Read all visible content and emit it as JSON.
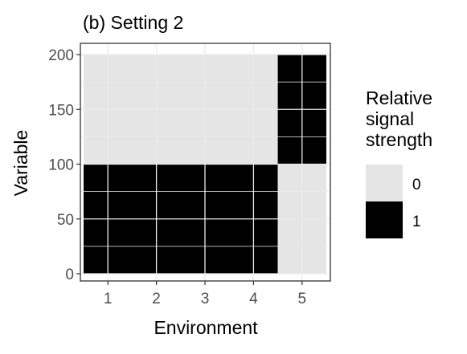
{
  "chart_data": {
    "type": "heatmap",
    "title": "(b) Setting 2",
    "xlabel": "Environment",
    "ylabel": "Variable",
    "x_categories": [
      "1",
      "2",
      "3",
      "4",
      "5"
    ],
    "xlim": [
      0.5,
      5.5
    ],
    "ylim": [
      0,
      200
    ],
    "yticks": [
      0,
      50,
      100,
      150,
      200
    ],
    "grid": true,
    "legend": {
      "title_lines": [
        "Relative",
        "signal",
        "strength"
      ],
      "placement": "right",
      "entries": [
        {
          "label": "0",
          "value": 0,
          "color": "#e5e5e5"
        },
        {
          "label": "1",
          "value": 1,
          "color": "#000000"
        }
      ]
    },
    "cells": [
      {
        "x_from": 1,
        "x_to": 4,
        "y_from": 0,
        "y_to": 100,
        "value": 1
      },
      {
        "x_from": 1,
        "x_to": 4,
        "y_from": 100,
        "y_to": 200,
        "value": 0
      },
      {
        "x_from": 5,
        "x_to": 5,
        "y_from": 0,
        "y_to": 100,
        "value": 0
      },
      {
        "x_from": 5,
        "x_to": 5,
        "y_from": 100,
        "y_to": 200,
        "value": 1
      }
    ],
    "colors": {
      "0": "#e5e5e5",
      "1": "#000000",
      "grid": "#ebebeb",
      "panel_border": "#333333",
      "tick_text": "#4d4d4d",
      "text": "#000000"
    }
  }
}
